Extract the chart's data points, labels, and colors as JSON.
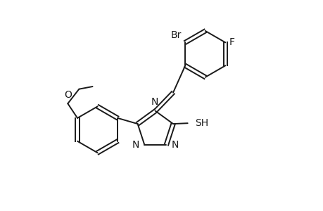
{
  "background_color": "#ffffff",
  "line_color": "#1a1a1a",
  "line_width": 1.4,
  "font_size": 10,
  "fig_width": 4.6,
  "fig_height": 3.0,
  "dpi": 100,
  "xlim": [
    0,
    10
  ],
  "ylim": [
    0,
    6.5
  ]
}
